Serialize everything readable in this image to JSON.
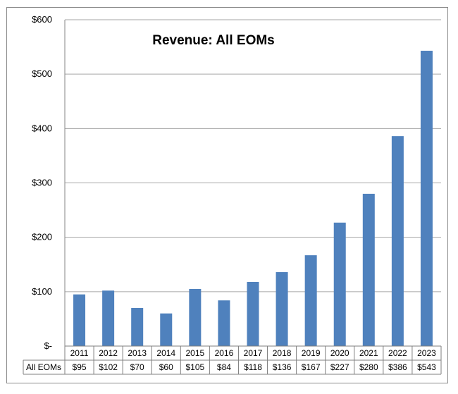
{
  "chart_data": {
    "type": "bar",
    "title": "Revenue: All EOMs",
    "xlabel": "",
    "ylabel": "",
    "ylim": [
      0,
      600
    ],
    "yticks": [
      "$-",
      "$100",
      "$200",
      "$300",
      "$400",
      "$500",
      "$600"
    ],
    "ytick_values": [
      0,
      100,
      200,
      300,
      400,
      500,
      600
    ],
    "grid": true,
    "legend": "data-table",
    "categories": [
      "2011",
      "2012",
      "2013",
      "2014",
      "2015",
      "2016",
      "2017",
      "2018",
      "2019",
      "2020",
      "2021",
      "2022",
      "2023"
    ],
    "series": [
      {
        "name": "All EOMs",
        "color": "#4f81bd",
        "values": [
          95,
          102,
          70,
          60,
          105,
          84,
          118,
          136,
          167,
          227,
          280,
          386,
          543
        ],
        "labels": [
          "$95",
          "$102",
          "$70",
          "$60",
          "$105",
          "$84",
          "$118",
          "$136",
          "$167",
          "$227",
          "$280",
          "$386",
          "$543"
        ]
      }
    ]
  }
}
